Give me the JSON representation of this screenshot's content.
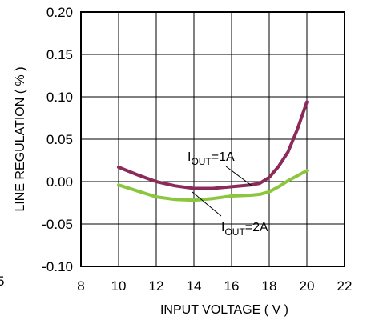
{
  "chart_data": {
    "type": "line",
    "xlabel": "INPUT VOLTAGE ( V )",
    "ylabel": "LINE REGULATION ( % )",
    "xlim": [
      8,
      22
    ],
    "ylim": [
      -0.1,
      0.2
    ],
    "x_ticks": [
      "8",
      "10",
      "12",
      "14",
      "16",
      "18",
      "20",
      "22"
    ],
    "y_ticks": [
      "0.20",
      "0.15",
      "0.10",
      "0.05",
      "0.00",
      "-0.05",
      "-0.10"
    ],
    "grid": true,
    "series": [
      {
        "name": "IOUT=1A",
        "color": "#8b2b5b",
        "x": [
          10,
          11,
          12,
          13,
          14,
          15,
          16,
          17,
          17.5,
          18,
          18.5,
          19,
          19.5,
          20
        ],
        "y": [
          0.017,
          0.008,
          0.0,
          -0.005,
          -0.008,
          -0.008,
          -0.006,
          -0.004,
          -0.002,
          0.005,
          0.018,
          0.035,
          0.062,
          0.094
        ]
      },
      {
        "name": "IOUT=2A",
        "color": "#8cc63f",
        "x": [
          10,
          11,
          12,
          13,
          14,
          15,
          16,
          17,
          17.5,
          18,
          18.5,
          19,
          19.5,
          20
        ],
        "y": [
          -0.004,
          -0.011,
          -0.018,
          -0.021,
          -0.022,
          -0.02,
          -0.017,
          -0.016,
          -0.015,
          -0.012,
          -0.006,
          0.001,
          0.007,
          0.013
        ]
      }
    ],
    "annotations": [
      {
        "main": "I",
        "sub": "OUT",
        "rest": "=1A",
        "x": 17,
        "y": -0.005
      },
      {
        "main": "I",
        "sub": "OUT",
        "rest": "=2A",
        "x": 17,
        "y": -0.016
      }
    ]
  },
  "edge_fragment": "5"
}
